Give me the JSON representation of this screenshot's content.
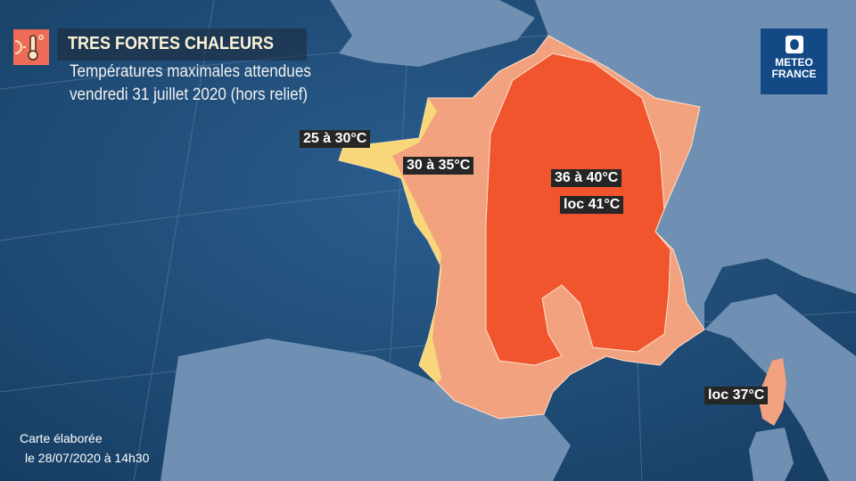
{
  "header": {
    "icon": "thermometer-sun-icon",
    "title": "TRES FORTES CHALEURS",
    "subtitle_line1": "Températures maximales attendues",
    "subtitle_line2": "vendredi 31 juillet 2020 (hors relief)"
  },
  "logo": {
    "line1": "METEO",
    "line2": "FRANCE"
  },
  "map": {
    "colors": {
      "sea": "#1d4a73",
      "land": "#7090b3",
      "zone_25_30": "#f8d77a",
      "zone_30_35": "#f3a27f",
      "zone_36_40": "#f0552d"
    },
    "labels": [
      {
        "text": "25 à 30°C"
      },
      {
        "text": "30 à 35°C"
      },
      {
        "text": "36 à 40°C"
      },
      {
        "text": "loc 41°C"
      },
      {
        "text": "loc 37°C"
      }
    ]
  },
  "footer": {
    "line1": "Carte élaborée",
    "line2": "le 28/07/2020 à 14h30"
  }
}
